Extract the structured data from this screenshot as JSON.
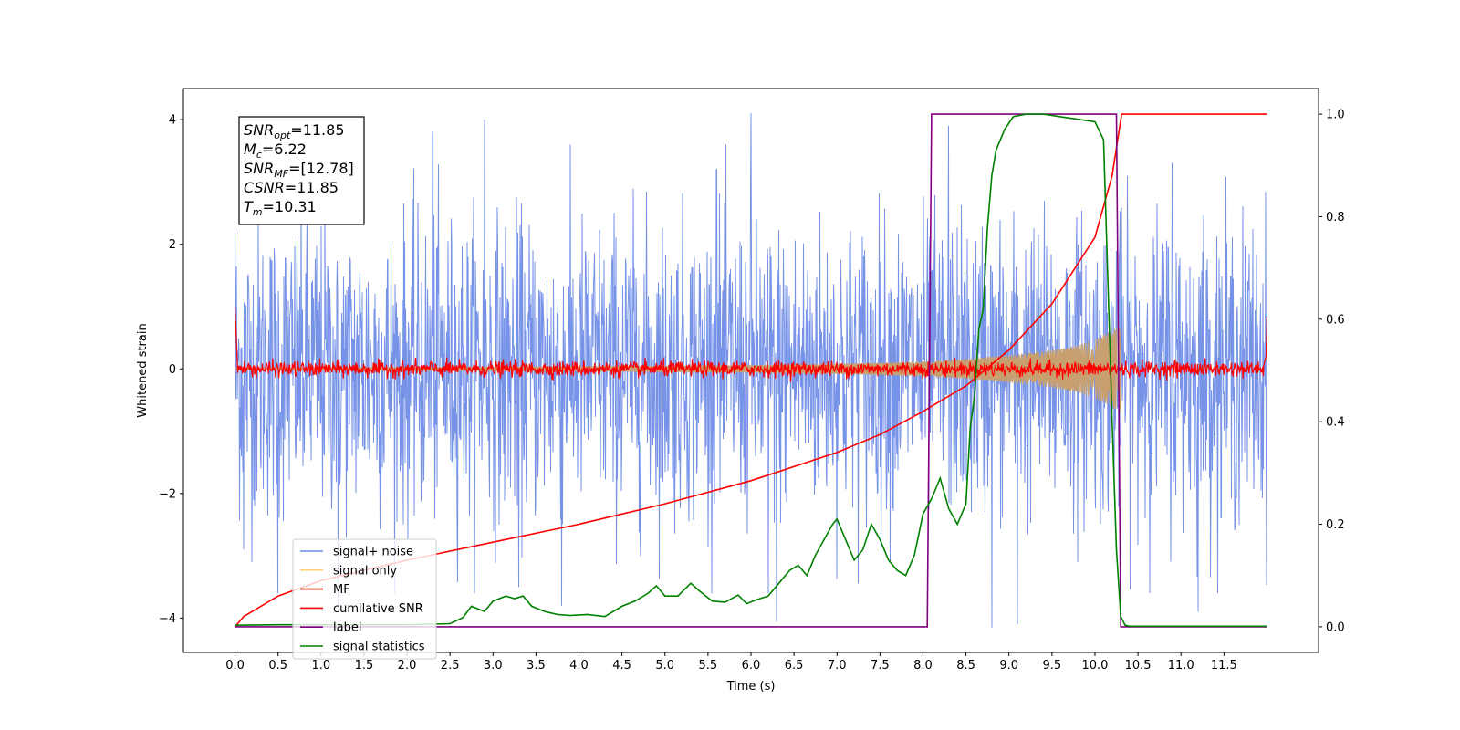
{
  "chart_data": {
    "type": "line",
    "xlabel": "Time (s)",
    "ylabel": "Whitened strain",
    "xlim": [
      -0.6,
      12.6
    ],
    "ylim": [
      -4.55,
      4.5
    ],
    "y2lim": [
      -0.05,
      1.05
    ],
    "xticks": [
      0.0,
      0.5,
      1.0,
      1.5,
      2.0,
      2.5,
      3.0,
      3.5,
      4.0,
      4.5,
      5.0,
      5.5,
      6.0,
      6.5,
      7.0,
      7.5,
      8.0,
      8.5,
      9.0,
      9.5,
      10.0,
      10.5,
      11.0,
      11.5
    ],
    "xtick_labels": [
      "0.0",
      "0.5",
      "1.0",
      "1.5",
      "2.0",
      "2.5",
      "3.0",
      "3.5",
      "4.0",
      "4.5",
      "5.0",
      "5.5",
      "6.0",
      "6.5",
      "7.0",
      "7.5",
      "8.0",
      "8.5",
      "9.0",
      "9.5",
      "10.0",
      "10.5",
      "11.0",
      "11.5"
    ],
    "yticks": [
      4,
      2,
      0,
      -2,
      -4
    ],
    "ytick_labels": [
      "4",
      "2",
      "0",
      "−2",
      "−4"
    ],
    "y2ticks": [
      1.0,
      0.8,
      0.6,
      0.4,
      0.2,
      0.0
    ],
    "y2tick_labels": [
      "1.0",
      "0.8",
      "0.6",
      "0.4",
      "0.2",
      "0.0"
    ],
    "legend_position": "lower-left",
    "info_box": {
      "position": "top-left",
      "lines": [
        {
          "sym": "SNR",
          "sub": "opt",
          "value": "=11.85"
        },
        {
          "sym": "M",
          "sub": "c",
          "value": "=6.22"
        },
        {
          "sym": "SNR",
          "sub": "MF",
          "value": "=[12.78]"
        },
        {
          "sym": "CSNR",
          "sub": "",
          "value": "=11.85"
        },
        {
          "sym": "T",
          "sub": "m",
          "value": "=10.31"
        }
      ]
    },
    "series": [
      {
        "name": "signal+ noise",
        "axis": "left",
        "color": "#6b8ae6",
        "kind": "noise",
        "x_range": [
          0.0,
          12.0
        ],
        "typical_envelope": [
          -2.6,
          2.6
        ],
        "extreme_peaks": [
          [
            0.0,
            2.2
          ],
          [
            2.3,
            3.8
          ],
          [
            2.9,
            4.0
          ],
          [
            3.3,
            3.4
          ],
          [
            5.6,
            3.2
          ],
          [
            6.0,
            4.1
          ],
          [
            8.3,
            3.9
          ],
          [
            10.9,
            3.3
          ],
          [
            0.1,
            -2.9
          ],
          [
            0.5,
            -3.6
          ],
          [
            1.2,
            -3.9
          ],
          [
            3.3,
            -3.5
          ],
          [
            3.8,
            -3.8
          ],
          [
            6.2,
            -3.6
          ],
          [
            6.3,
            -4.05
          ],
          [
            8.8,
            -4.15
          ],
          [
            9.1,
            -4.1
          ],
          [
            11.2,
            -3.9
          ]
        ]
      },
      {
        "name": "signal only",
        "axis": "left",
        "color": "#c8a070",
        "kind": "chirp",
        "x": [
          0.0,
          4.0,
          6.0,
          7.0,
          8.0,
          8.5,
          9.0,
          9.5,
          9.8,
          10.0,
          10.2,
          10.3
        ],
        "amplitude": [
          0.01,
          0.04,
          0.06,
          0.08,
          0.12,
          0.16,
          0.22,
          0.3,
          0.38,
          0.48,
          0.62,
          0.7
        ]
      },
      {
        "name": "MF",
        "axis": "left",
        "color": "#ff0000",
        "kind": "noise-trace",
        "x_range": [
          0.0,
          12.0
        ],
        "typical_envelope": [
          -0.15,
          0.15
        ],
        "edges": [
          [
            0.0,
            1.0
          ],
          [
            12.0,
            0.85
          ]
        ]
      },
      {
        "name": "cumilative SNR",
        "axis": "right",
        "color": "#ff0000",
        "kind": "line",
        "x": [
          0.0,
          0.1,
          0.5,
          1.0,
          2.0,
          3.0,
          4.0,
          5.0,
          6.0,
          7.0,
          7.5,
          8.0,
          8.5,
          9.0,
          9.5,
          10.0,
          10.2,
          10.31,
          12.0
        ],
        "y": [
          0.0,
          0.02,
          0.06,
          0.09,
          0.13,
          0.165,
          0.2,
          0.24,
          0.285,
          0.34,
          0.375,
          0.42,
          0.47,
          0.54,
          0.63,
          0.76,
          0.88,
          1.0,
          1.0
        ]
      },
      {
        "name": "label",
        "axis": "right",
        "color": "#800080",
        "kind": "step",
        "x": [
          0.0,
          8.05,
          8.1,
          10.25,
          10.3,
          12.0
        ],
        "y": [
          0.0,
          0.0,
          1.0,
          1.0,
          0.0,
          0.0
        ]
      },
      {
        "name": "signal statistics",
        "axis": "right",
        "color": "#008000",
        "kind": "line",
        "x": [
          0.0,
          0.5,
          1.0,
          1.5,
          2.0,
          2.5,
          2.65,
          2.75,
          2.9,
          3.0,
          3.15,
          3.25,
          3.35,
          3.45,
          3.6,
          3.75,
          3.9,
          4.1,
          4.3,
          4.5,
          4.65,
          4.8,
          4.9,
          5.0,
          5.15,
          5.3,
          5.4,
          5.55,
          5.7,
          5.85,
          5.95,
          6.05,
          6.2,
          6.35,
          6.45,
          6.55,
          6.65,
          6.75,
          6.85,
          6.95,
          7.0,
          7.1,
          7.2,
          7.3,
          7.4,
          7.5,
          7.6,
          7.7,
          7.8,
          7.9,
          7.95,
          8.0,
          8.1,
          8.2,
          8.3,
          8.4,
          8.5,
          8.55,
          8.6,
          8.65,
          8.7,
          8.75,
          8.8,
          8.85,
          8.95,
          9.05,
          9.2,
          9.4,
          9.6,
          9.8,
          10.0,
          10.1,
          10.2,
          10.25,
          10.3,
          10.35,
          10.4,
          10.5,
          12.0
        ],
        "y": [
          0.003,
          0.004,
          0.004,
          0.004,
          0.004,
          0.006,
          0.018,
          0.04,
          0.03,
          0.05,
          0.06,
          0.055,
          0.06,
          0.04,
          0.03,
          0.024,
          0.022,
          0.024,
          0.02,
          0.04,
          0.05,
          0.065,
          0.08,
          0.06,
          0.06,
          0.085,
          0.07,
          0.05,
          0.048,
          0.062,
          0.045,
          0.052,
          0.06,
          0.09,
          0.11,
          0.12,
          0.1,
          0.14,
          0.17,
          0.2,
          0.21,
          0.17,
          0.13,
          0.15,
          0.2,
          0.17,
          0.13,
          0.11,
          0.1,
          0.14,
          0.18,
          0.22,
          0.25,
          0.29,
          0.23,
          0.2,
          0.24,
          0.39,
          0.45,
          0.58,
          0.62,
          0.78,
          0.88,
          0.93,
          0.97,
          0.995,
          1.0,
          1.0,
          0.995,
          0.99,
          0.985,
          0.95,
          0.4,
          0.15,
          0.02,
          0.003,
          0.001,
          0.001,
          0.001
        ]
      }
    ]
  }
}
